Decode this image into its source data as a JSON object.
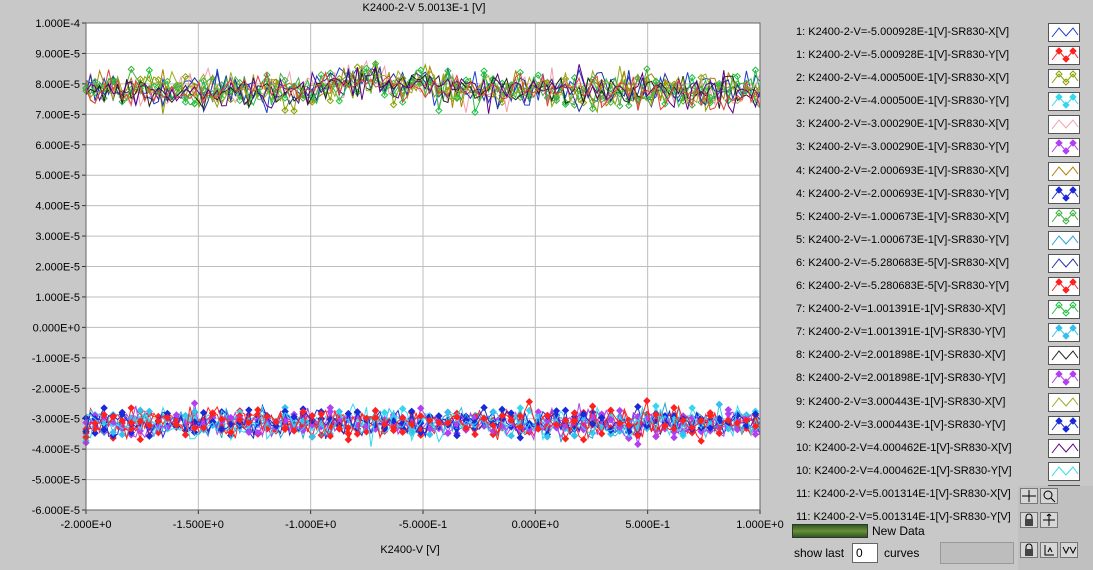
{
  "chart_data": {
    "type": "scatter",
    "title": "K2400-2-V 5.0013E-1 [V]",
    "xlabel": "K2400-V  [V]",
    "ylabel": "",
    "xlim": [
      -2.0,
      1.0
    ],
    "ylim": [
      -6e-05,
      0.0001
    ],
    "xticks": [
      "-2.000E+0",
      "-1.500E+0",
      "-1.000E+0",
      "-5.000E-1",
      "0.000E+0",
      "5.000E-1",
      "1.000E+0"
    ],
    "xtick_values": [
      -2.0,
      -1.5,
      -1.0,
      -0.5,
      0.0,
      0.5,
      1.0
    ],
    "yticks": [
      "1.000E-4",
      "9.000E-5",
      "8.000E-5",
      "7.000E-5",
      "6.000E-5",
      "5.000E-5",
      "4.000E-5",
      "3.000E-5",
      "2.000E-5",
      "1.000E-5",
      "0.000E+0",
      "-1.000E-5",
      "-2.000E-5",
      "-3.000E-5",
      "-4.000E-5",
      "-5.000E-5",
      "-6.000E-5"
    ],
    "ytick_values": [
      0.0001,
      9e-05,
      8e-05,
      7e-05,
      6e-05,
      5e-05,
      4e-05,
      3e-05,
      2e-05,
      1e-05,
      0,
      -1e-05,
      -2e-05,
      -3e-05,
      -4e-05,
      -5e-05,
      -6e-05
    ],
    "grid": true,
    "legend_position": "right",
    "series": [
      {
        "name": "1: K2400-2-V=-5.000928E-1[V]-SR830-X[V]",
        "color": "#1a3fd0",
        "marker": "none",
        "group": "X",
        "center": 7.82e-05
      },
      {
        "name": "1: K2400-2-V=-5.000928E-1[V]-SR830-Y[V]",
        "color": "#ff2020",
        "marker": "diamond",
        "group": "Y",
        "center": -3.15e-05
      },
      {
        "name": "2: K2400-2-V=-4.000500E-1[V]-SR830-X[V]",
        "color": "#8aa000",
        "marker": "open-diamond",
        "group": "X",
        "center": 7.75e-05
      },
      {
        "name": "2: K2400-2-V=-4.000500E-1[V]-SR830-Y[V]",
        "color": "#35d7ee",
        "marker": "diamond",
        "group": "Y",
        "center": -3.12e-05
      },
      {
        "name": "3: K2400-2-V=-3.000290E-1[V]-SR830-X[V]",
        "color": "#f0a0b0",
        "marker": "none",
        "group": "X",
        "center": 7.79e-05
      },
      {
        "name": "3: K2400-2-V=-3.000290E-1[V]-SR830-Y[V]",
        "color": "#b040f0",
        "marker": "diamond",
        "group": "Y",
        "center": -3.18e-05
      },
      {
        "name": "4: K2400-2-V=-2.000693E-1[V]-SR830-X[V]",
        "color": "#b08000",
        "marker": "none",
        "group": "X",
        "center": 7.81e-05
      },
      {
        "name": "4: K2400-2-V=-2.000693E-1[V]-SR830-Y[V]",
        "color": "#1a2ad8",
        "marker": "diamond",
        "group": "Y",
        "center": -3.14e-05
      },
      {
        "name": "5: K2400-2-V=-1.000673E-1[V]-SR830-X[V]",
        "color": "#40b040",
        "marker": "open-diamond",
        "group": "X",
        "center": 7.76e-05
      },
      {
        "name": "5: K2400-2-V=-1.000673E-1[V]-SR830-Y[V]",
        "color": "#2aa0d0",
        "marker": "none",
        "group": "Y",
        "center": -3.16e-05
      },
      {
        "name": "6: K2400-2-V=-5.280683E-5[V]-SR830-X[V]",
        "color": "#2030a0",
        "marker": "none",
        "group": "X",
        "center": 7.78e-05
      },
      {
        "name": "6: K2400-2-V=-5.280683E-5[V]-SR830-Y[V]",
        "color": "#ff2020",
        "marker": "diamond",
        "group": "Y",
        "center": -3.13e-05
      },
      {
        "name": "7: K2400-2-V=1.001391E-1[V]-SR830-X[V]",
        "color": "#20c040",
        "marker": "open-diamond",
        "group": "X",
        "center": 7.8e-05
      },
      {
        "name": "7: K2400-2-V=1.001391E-1[V]-SR830-Y[V]",
        "color": "#35c0ee",
        "marker": "diamond",
        "group": "Y",
        "center": -3.17e-05
      },
      {
        "name": "8: K2400-2-V=2.001898E-1[V]-SR830-X[V]",
        "color": "#202020",
        "marker": "none",
        "group": "X",
        "center": 7.77e-05
      },
      {
        "name": "8: K2400-2-V=2.001898E-1[V]-SR830-Y[V]",
        "color": "#b040f0",
        "marker": "diamond",
        "group": "Y",
        "center": -3.15e-05
      },
      {
        "name": "9: K2400-2-V=3.000443E-1[V]-SR830-X[V]",
        "color": "#9aaa20",
        "marker": "none",
        "group": "X",
        "center": 7.83e-05
      },
      {
        "name": "9: K2400-2-V=3.000443E-1[V]-SR830-Y[V]",
        "color": "#1a2ad8",
        "marker": "diamond",
        "group": "Y",
        "center": -3.11e-05
      },
      {
        "name": "10: K2400-2-V=4.000462E-1[V]-SR830-X[V]",
        "color": "#600080",
        "marker": "none",
        "group": "X",
        "center": 7.79e-05
      },
      {
        "name": "10: K2400-2-V=4.000462E-1[V]-SR830-Y[V]",
        "color": "#35d7ee",
        "marker": "none",
        "group": "Y",
        "center": -3.19e-05
      },
      {
        "name": "11: K2400-2-V=5.001314E-1[V]-SR830-X[V]",
        "color": "#e04040",
        "marker": "none",
        "group": "X",
        "center": 7.76e-05
      },
      {
        "name": "11: K2400-2-V=5.001314E-1[V]-SR830-Y[V]",
        "color": "#ff2020",
        "marker": "diamond",
        "group": "Y",
        "center": -3.14e-05
      }
    ]
  },
  "controls": {
    "new_data_label": "New Data",
    "show_last_label": "show last",
    "show_last_value": "0",
    "curves_label": "curves"
  },
  "icons": {
    "crosshair": "crosshair-icon",
    "lock": "lock-icon",
    "zoom": "zoom-icon",
    "pan": "pan-icon",
    "scale_y": "scale-y-icon",
    "format": "format-icon"
  }
}
